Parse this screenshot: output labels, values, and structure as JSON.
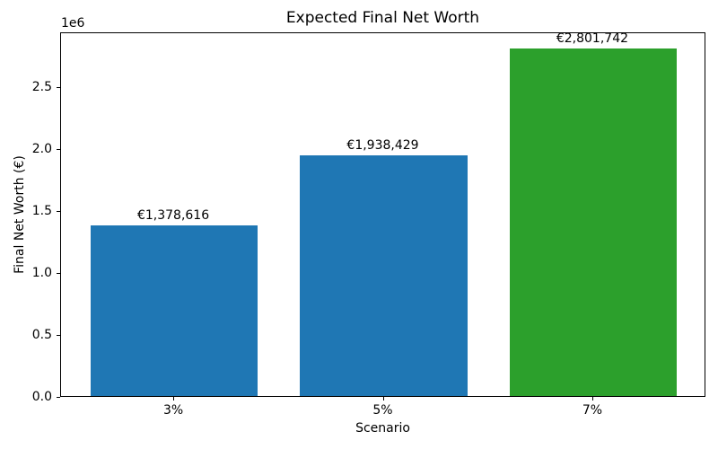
{
  "chart_data": {
    "type": "bar",
    "title": "Expected Final Net Worth",
    "xlabel": "Scenario",
    "ylabel": "Final Net Worth (€)",
    "y_offset_label": "1e6",
    "categories": [
      "3%",
      "5%",
      "7%"
    ],
    "values": [
      1378616,
      1938429,
      2801742
    ],
    "bar_labels": [
      "€1,378,616",
      "€1,938,429",
      "€2,801,742"
    ],
    "bar_colors": [
      "#1f77b4",
      "#1f77b4",
      "#2ca02c"
    ],
    "ylim": [
      0,
      2941829
    ],
    "yticks": [
      {
        "label": "0.0",
        "value": 0
      },
      {
        "label": "0.5",
        "value": 500000
      },
      {
        "label": "1.0",
        "value": 1000000
      },
      {
        "label": "1.5",
        "value": 1500000
      },
      {
        "label": "2.0",
        "value": 2000000
      },
      {
        "label": "2.5",
        "value": 2500000
      }
    ],
    "grid": false,
    "legend": null,
    "bar_width_fraction": 0.8
  }
}
